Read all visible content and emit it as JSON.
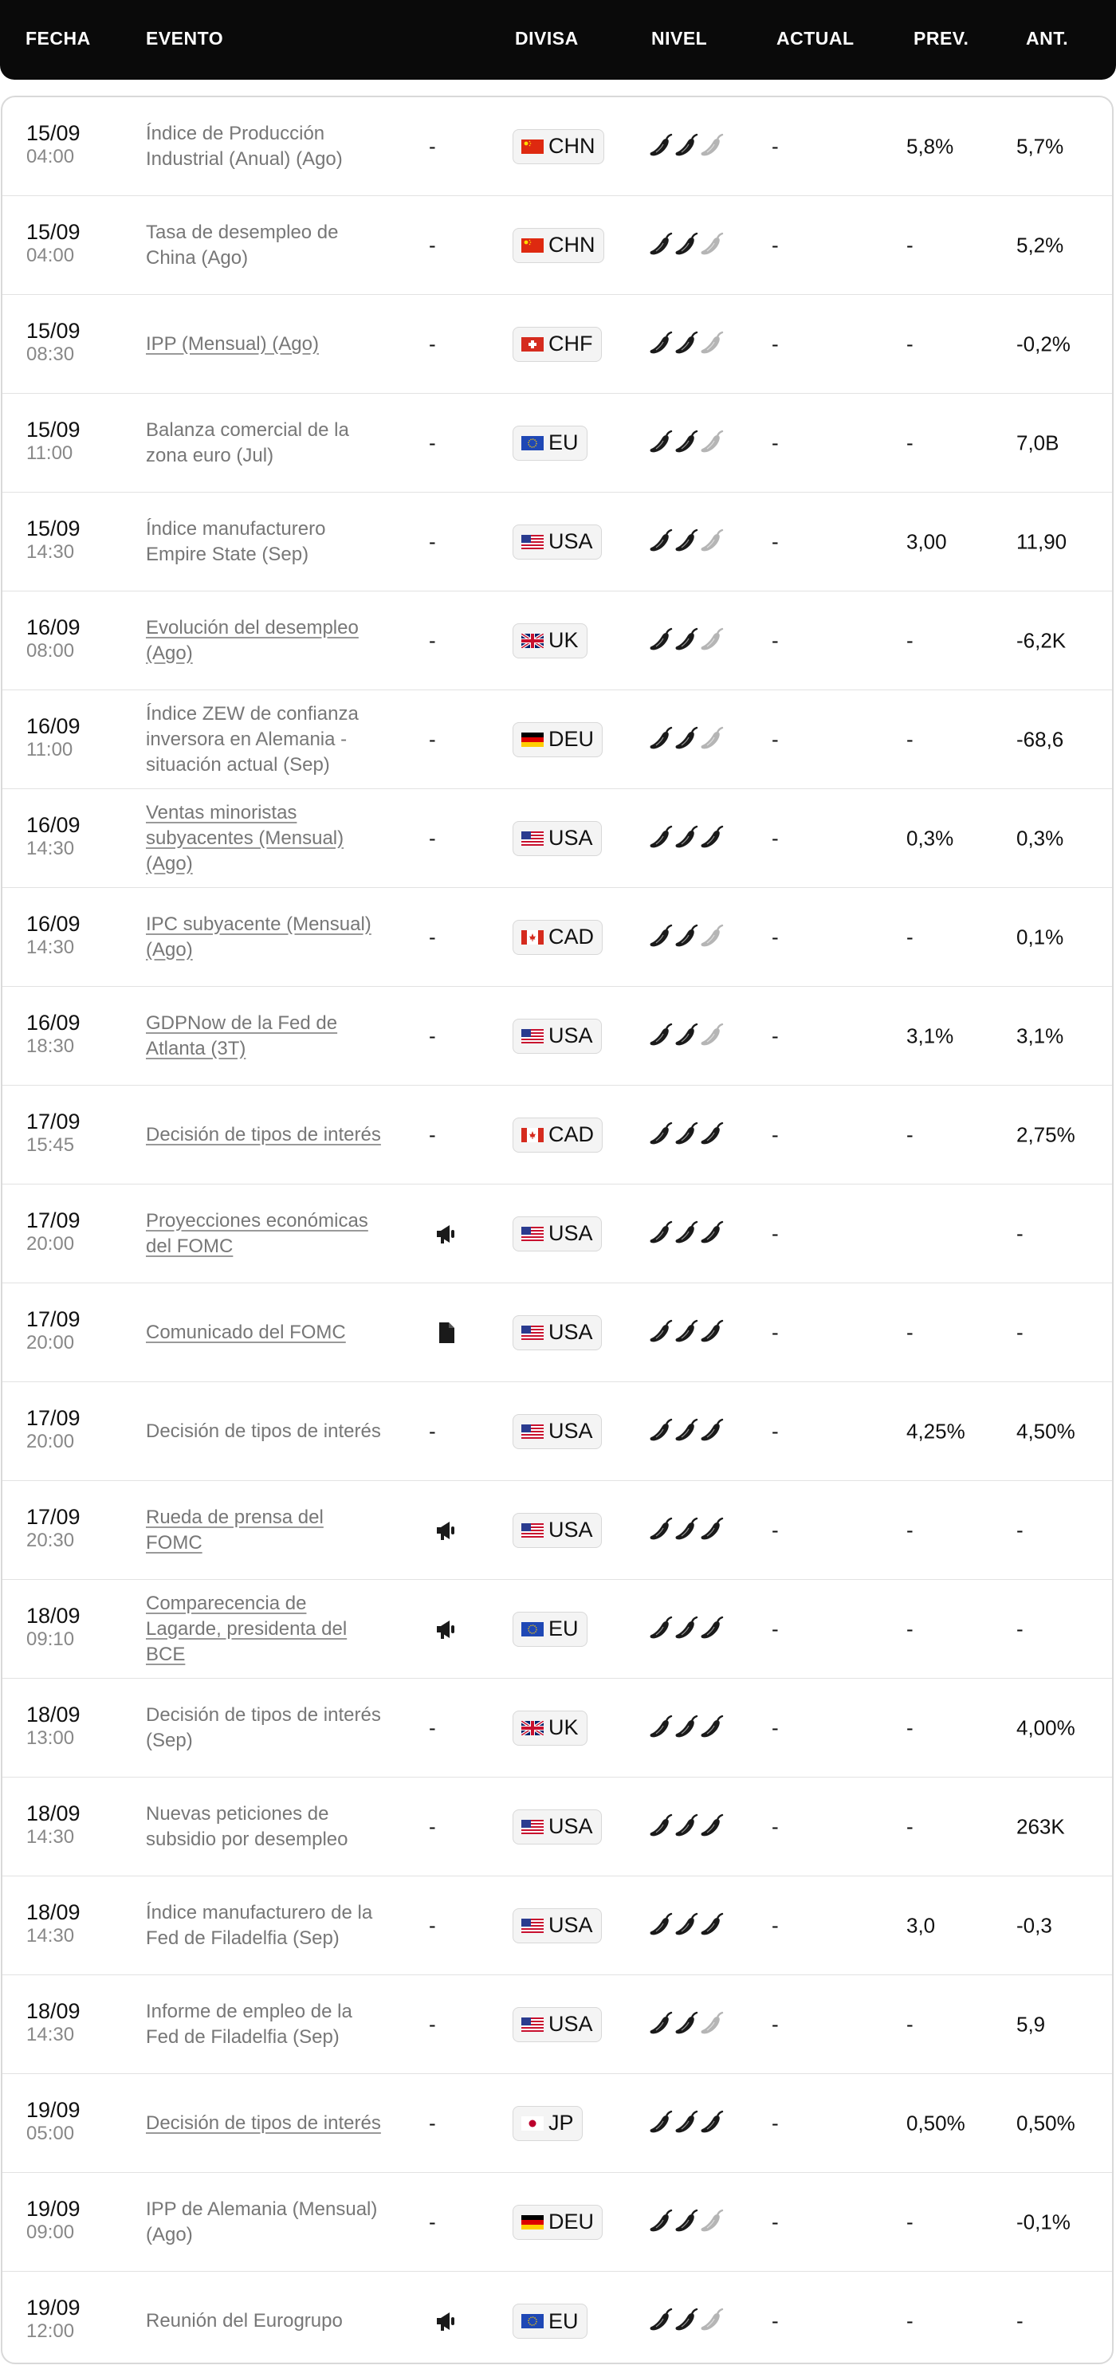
{
  "header": {
    "date": "FECHA",
    "event": "EVENTO",
    "currency": "DIVISA",
    "level": "NIVEL",
    "actual": "ACTUAL",
    "prev": "PREV.",
    "ant": "ANT."
  },
  "colors": {
    "hot": "#1a1a1a",
    "cold": "#b5b5b5",
    "header_bg": "#0a0a0a"
  },
  "rows": [
    {
      "date": "15/09",
      "time": "04:00",
      "event": "Índice de Producción Industrial (Anual) (Ago)",
      "link": false,
      "impact": "-",
      "impact_icon": "",
      "currency": "CHN",
      "flag": "CN",
      "level": 2,
      "actual": "-",
      "prev": "5,8%",
      "ant": "5,7%"
    },
    {
      "date": "15/09",
      "time": "04:00",
      "event": "Tasa de desempleo de China (Ago)",
      "link": false,
      "impact": "-",
      "impact_icon": "",
      "currency": "CHN",
      "flag": "CN",
      "level": 2,
      "actual": "-",
      "prev": "-",
      "ant": "5,2%"
    },
    {
      "date": "15/09",
      "time": "08:30",
      "event": "IPP (Mensual) (Ago)",
      "link": true,
      "impact": "-",
      "impact_icon": "",
      "currency": "CHF",
      "flag": "CH",
      "level": 2,
      "actual": "-",
      "prev": "-",
      "ant": "-0,2%"
    },
    {
      "date": "15/09",
      "time": "11:00",
      "event": "Balanza comercial de la zona euro (Jul)",
      "link": false,
      "impact": "-",
      "impact_icon": "",
      "currency": "EU",
      "flag": "EU",
      "level": 2,
      "actual": "-",
      "prev": "-",
      "ant": "7,0B"
    },
    {
      "date": "15/09",
      "time": "14:30",
      "event": "Índice manufacturero Empire State (Sep)",
      "link": false,
      "impact": "-",
      "impact_icon": "",
      "currency": "USA",
      "flag": "US",
      "level": 2,
      "actual": "-",
      "prev": "3,00",
      "ant": "11,90"
    },
    {
      "date": "16/09",
      "time": "08:00",
      "event": "Evolución del desempleo (Ago)",
      "link": true,
      "impact": "-",
      "impact_icon": "",
      "currency": "UK",
      "flag": "UK",
      "level": 2,
      "actual": "-",
      "prev": "-",
      "ant": "-6,2K"
    },
    {
      "date": "16/09",
      "time": "11:00",
      "event": "Índice ZEW de confianza inversora en Alemania - situación actual (Sep)",
      "link": false,
      "impact": "-",
      "impact_icon": "",
      "currency": "DEU",
      "flag": "DE",
      "level": 2,
      "actual": "-",
      "prev": "-",
      "ant": "-68,6"
    },
    {
      "date": "16/09",
      "time": "14:30",
      "event": "Ventas minoristas subyacentes (Mensual) (Ago)",
      "link": true,
      "impact": "-",
      "impact_icon": "",
      "currency": "USA",
      "flag": "US",
      "level": 3,
      "actual": "-",
      "prev": "0,3%",
      "ant": "0,3%"
    },
    {
      "date": "16/09",
      "time": "14:30",
      "event": "IPC subyacente (Mensual) (Ago)",
      "link": true,
      "impact": "-",
      "impact_icon": "",
      "currency": "CAD",
      "flag": "CA",
      "level": 2,
      "actual": "-",
      "prev": "-",
      "ant": "0,1%"
    },
    {
      "date": "16/09",
      "time": "18:30",
      "event": "GDPNow de la Fed de Atlanta (3T)",
      "link": true,
      "impact": "-",
      "impact_icon": "",
      "currency": "USA",
      "flag": "US",
      "level": 2,
      "actual": "-",
      "prev": "3,1%",
      "ant": "3,1%"
    },
    {
      "date": "17/09",
      "time": "15:45",
      "event": "Decisión de tipos de interés",
      "link": true,
      "impact": "-",
      "impact_icon": "",
      "currency": "CAD",
      "flag": "CA",
      "level": 3,
      "actual": "-",
      "prev": "-",
      "ant": "2,75%"
    },
    {
      "date": "17/09",
      "time": "20:00",
      "event": "Proyecciones económicas del FOMC",
      "link": true,
      "impact": "",
      "impact_icon": "megaphone-icon",
      "currency": "USA",
      "flag": "US",
      "level": 3,
      "actual": "-",
      "prev": "",
      "ant": "-"
    },
    {
      "date": "17/09",
      "time": "20:00",
      "event": "Comunicado del FOMC",
      "link": true,
      "impact": "",
      "impact_icon": "document-icon",
      "currency": "USA",
      "flag": "US",
      "level": 3,
      "actual": "-",
      "prev": "-",
      "ant": "-"
    },
    {
      "date": "17/09",
      "time": "20:00",
      "event": "Decisión de tipos de interés",
      "link": false,
      "impact": "-",
      "impact_icon": "",
      "currency": "USA",
      "flag": "US",
      "level": 3,
      "actual": "-",
      "prev": "4,25%",
      "ant": "4,50%"
    },
    {
      "date": "17/09",
      "time": "20:30",
      "event": "Rueda de prensa del FOMC",
      "link": true,
      "impact": "",
      "impact_icon": "megaphone-icon",
      "currency": "USA",
      "flag": "US",
      "level": 3,
      "actual": "-",
      "prev": "-",
      "ant": "-"
    },
    {
      "date": "18/09",
      "time": "09:10",
      "event": "Comparecencia de Lagarde, presidenta del BCE",
      "link": true,
      "impact": "",
      "impact_icon": "megaphone-icon",
      "currency": "EU",
      "flag": "EU",
      "level": 3,
      "actual": "-",
      "prev": "-",
      "ant": "-"
    },
    {
      "date": "18/09",
      "time": "13:00",
      "event": "Decisión de tipos de interés (Sep)",
      "link": false,
      "impact": "-",
      "impact_icon": "",
      "currency": "UK",
      "flag": "UK",
      "level": 3,
      "actual": "-",
      "prev": "-",
      "ant": "4,00%"
    },
    {
      "date": "18/09",
      "time": "14:30",
      "event": "Nuevas peticiones de subsidio por desempleo",
      "link": false,
      "impact": "-",
      "impact_icon": "",
      "currency": "USA",
      "flag": "US",
      "level": 3,
      "actual": "-",
      "prev": "-",
      "ant": "263K"
    },
    {
      "date": "18/09",
      "time": "14:30",
      "event": "Índice manufacturero de la Fed de Filadelfia (Sep)",
      "link": false,
      "impact": "-",
      "impact_icon": "",
      "currency": "USA",
      "flag": "US",
      "level": 3,
      "actual": "-",
      "prev": "3,0",
      "ant": "-0,3"
    },
    {
      "date": "18/09",
      "time": "14:30",
      "event": "Informe de empleo de la Fed de Filadelfia (Sep)",
      "link": false,
      "impact": "-",
      "impact_icon": "",
      "currency": "USA",
      "flag": "US",
      "level": 2,
      "actual": "-",
      "prev": "-",
      "ant": "5,9"
    },
    {
      "date": "19/09",
      "time": "05:00",
      "event": "Decisión de tipos de interés",
      "link": true,
      "impact": "-",
      "impact_icon": "",
      "currency": "JP",
      "flag": "JP",
      "level": 3,
      "actual": "-",
      "prev": "0,50%",
      "ant": "0,50%"
    },
    {
      "date": "19/09",
      "time": "09:00",
      "event": "IPP de Alemania (Mensual) (Ago)",
      "link": false,
      "impact": "-",
      "impact_icon": "",
      "currency": "DEU",
      "flag": "DE",
      "level": 2,
      "actual": "-",
      "prev": "-",
      "ant": "-0,1%"
    },
    {
      "date": "19/09",
      "time": "12:00",
      "event": "Reunión del Eurogrupo",
      "link": false,
      "impact": "",
      "impact_icon": "megaphone-icon",
      "currency": "EU",
      "flag": "EU",
      "level": 2,
      "actual": "-",
      "prev": "-",
      "ant": "-"
    }
  ]
}
